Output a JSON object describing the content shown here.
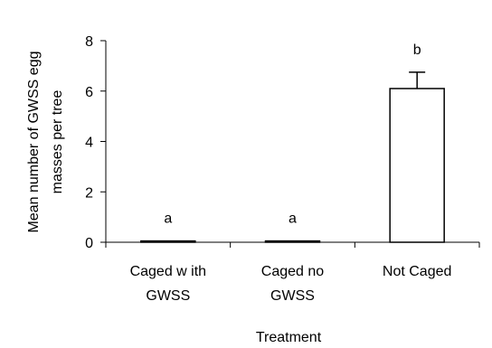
{
  "chart_data": {
    "type": "bar",
    "xlabel": "Treatment",
    "ylabel_lines": [
      "Mean number of GWSS egg",
      "masses per tree"
    ],
    "ylim": [
      0,
      8
    ],
    "yticks": [
      0,
      2,
      4,
      6,
      8
    ],
    "categories": [
      [
        "Caged w ith",
        "GWSS"
      ],
      [
        "Caged no",
        "GWSS"
      ],
      [
        "Not Caged"
      ]
    ],
    "values": [
      0.05,
      0.05,
      6.1
    ],
    "error_upper": [
      0,
      0,
      0.65
    ],
    "significance_letters": [
      "a",
      "a",
      "b"
    ],
    "grid": false,
    "legend": "none",
    "bar_fill": "#ffffff",
    "bar_stroke": "#000000"
  }
}
